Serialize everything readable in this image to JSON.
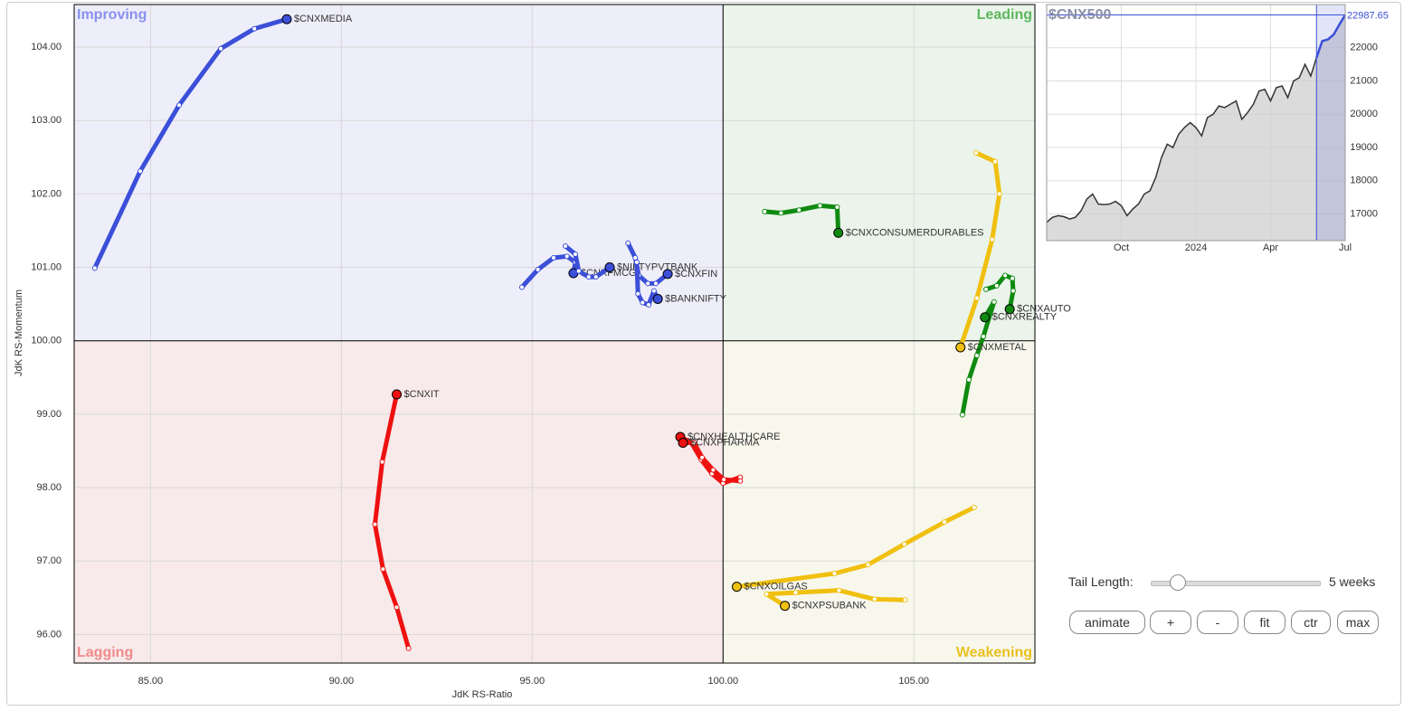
{
  "chart_data": [
    {
      "type": "line",
      "x_label": "JdK RS-Ratio",
      "y_label": "JdK RS-Momentum",
      "xlim": [
        83,
        108.17
      ],
      "ylim": [
        95.61,
        104.58
      ],
      "xticks": [
        {
          "value": 85,
          "label": "85.00"
        },
        {
          "value": 90,
          "label": "90.00"
        },
        {
          "value": 95,
          "label": "95.00"
        },
        {
          "value": 100,
          "label": "100.00"
        },
        {
          "value": 105,
          "label": "105.00"
        }
      ],
      "yticks": [
        {
          "value": 96,
          "label": "96.00"
        },
        {
          "value": 97,
          "label": "97.00"
        },
        {
          "value": 98,
          "label": "98.00"
        },
        {
          "value": 99,
          "label": "99.00"
        },
        {
          "value": 100,
          "label": "100.00"
        },
        {
          "value": 101,
          "label": "101.00"
        },
        {
          "value": 102,
          "label": "102.00"
        },
        {
          "value": 103,
          "label": "103.00"
        },
        {
          "value": 104,
          "label": "104.00"
        }
      ],
      "grid": true,
      "quadrants": [
        "Improving",
        "Leading",
        "Lagging",
        "Weakening"
      ],
      "series": [
        {
          "name": "$CNXMEDIA",
          "color": "#3b4fd8",
          "x": [
            83.54,
            84.73,
            85.75,
            86.84,
            87.72,
            88.57
          ],
          "values": [
            100.99,
            102.31,
            103.21,
            103.98,
            104.25,
            104.38
          ]
        },
        {
          "name": "$CNXFMCG",
          "color": "#3b4fd8",
          "x": [
            94.73,
            95.15,
            95.56,
            95.91,
            96.13,
            96.08
          ],
          "values": [
            100.73,
            100.97,
            101.13,
            101.15,
            101.07,
            100.92
          ]
        },
        {
          "name": "$NIFTYPVTBANK",
          "color": "#3b4fd8",
          "x": [
            95.87,
            96.13,
            96.22,
            96.48,
            96.67,
            97.03
          ],
          "values": [
            101.29,
            101.18,
            100.95,
            100.87,
            100.87,
            101.0
          ]
        },
        {
          "name": "$CNXFIN",
          "color": "#3b4fd8",
          "x": [
            97.51,
            97.7,
            97.79,
            98.03,
            98.24,
            98.55
          ],
          "values": [
            101.33,
            101.13,
            100.89,
            100.78,
            100.78,
            100.91
          ]
        },
        {
          "name": "$BANKNIFTY",
          "color": "#3b4fd8",
          "x": [
            97.74,
            97.77,
            97.89,
            98.05,
            98.19,
            98.29
          ],
          "values": [
            101.07,
            100.64,
            100.52,
            100.49,
            100.68,
            100.57
          ]
        },
        {
          "name": "$CNXCONSUMERDURABLES",
          "color": "#0f8a10",
          "x": [
            101.09,
            101.52,
            101.99,
            102.54,
            102.99,
            103.02
          ],
          "values": [
            101.76,
            101.74,
            101.78,
            101.84,
            101.82,
            101.47
          ]
        },
        {
          "name": "$CNXAUTO",
          "color": "#0f8a10",
          "x": [
            106.89,
            107.17,
            107.39,
            107.58,
            107.6,
            107.51
          ],
          "values": [
            100.7,
            100.75,
            100.89,
            100.85,
            100.68,
            100.43
          ]
        },
        {
          "name": "$CNXREALTY",
          "color": "#0f8a10",
          "x": [
            106.27,
            106.44,
            106.65,
            106.82,
            107.1,
            106.86
          ],
          "values": [
            98.99,
            99.47,
            99.8,
            100.06,
            100.53,
            100.32
          ]
        },
        {
          "name": "$CNXMETAL",
          "color": "#f0c010",
          "x": [
            106.63,
            107.13,
            107.24,
            107.05,
            106.65,
            106.22
          ],
          "values": [
            102.56,
            102.44,
            102.0,
            101.38,
            100.58,
            99.91
          ]
        },
        {
          "name": "$CNXOILGAS",
          "color": "#f0c010",
          "x": [
            106.58,
            105.8,
            104.75,
            103.8,
            102.92,
            100.36
          ],
          "values": [
            97.73,
            97.53,
            97.23,
            96.95,
            96.83,
            96.65
          ]
        },
        {
          "name": "$CNXPSUBANK",
          "color": "#f0c010",
          "x": [
            104.77,
            103.97,
            103.04,
            101.9,
            101.14,
            101.62
          ],
          "values": [
            96.47,
            96.48,
            96.6,
            96.57,
            96.55,
            96.39
          ]
        },
        {
          "name": "$CNXIT",
          "color": "#ee1111",
          "x": [
            91.76,
            91.45,
            91.09,
            90.88,
            91.07,
            91.45
          ],
          "values": [
            95.81,
            96.37,
            96.89,
            97.5,
            98.35,
            99.27
          ]
        },
        {
          "name": "$CNXHEALTHCARE",
          "color": "#ee1111",
          "x": [
            100.45,
            100.0,
            99.71,
            99.43,
            99.17,
            98.88
          ],
          "values": [
            98.14,
            98.06,
            98.19,
            98.38,
            98.61,
            98.69
          ]
        },
        {
          "name": "$CNXPHARMA",
          "color": "#ee1111",
          "x": [
            100.45,
            100.02,
            99.74,
            99.45,
            99.24,
            98.95
          ],
          "values": [
            98.09,
            98.11,
            98.24,
            98.41,
            98.61,
            98.61
          ]
        }
      ]
    },
    {
      "type": "area",
      "title": "$CNX500",
      "color": "#333333",
      "highlight_color": "#3b4fd8",
      "xlim": [
        0,
        52
      ],
      "ylim": [
        16200,
        23300
      ],
      "range_start": 47,
      "xticks": [
        {
          "value": 13,
          "label": "Oct"
        },
        {
          "value": 26,
          "label": "2024"
        },
        {
          "value": 39,
          "label": "Apr"
        },
        {
          "value": 52,
          "label": "Jul"
        }
      ],
      "yticks": [
        17000,
        18000,
        19000,
        20000,
        21000,
        22000
      ],
      "values": [
        16750,
        16900,
        16950,
        16920,
        16850,
        16900,
        17100,
        17450,
        17600,
        17300,
        17280,
        17300,
        17380,
        17250,
        16950,
        17150,
        17300,
        17600,
        17700,
        18100,
        18700,
        19100,
        19000,
        19400,
        19600,
        19750,
        19600,
        19350,
        19900,
        20000,
        20250,
        20200,
        20300,
        20400,
        19850,
        20050,
        20300,
        20700,
        20750,
        20400,
        20800,
        20850,
        20500,
        21000,
        21100,
        21500,
        21150,
        21700,
        22200,
        22250,
        22400,
        22700,
        22987.65
      ]
    }
  ],
  "controls": {
    "tail_label": "Tail Length:",
    "tail_value": "5 weeks",
    "buttons": [
      "animate",
      "+",
      "-",
      "fit",
      "ctr",
      "max"
    ]
  }
}
